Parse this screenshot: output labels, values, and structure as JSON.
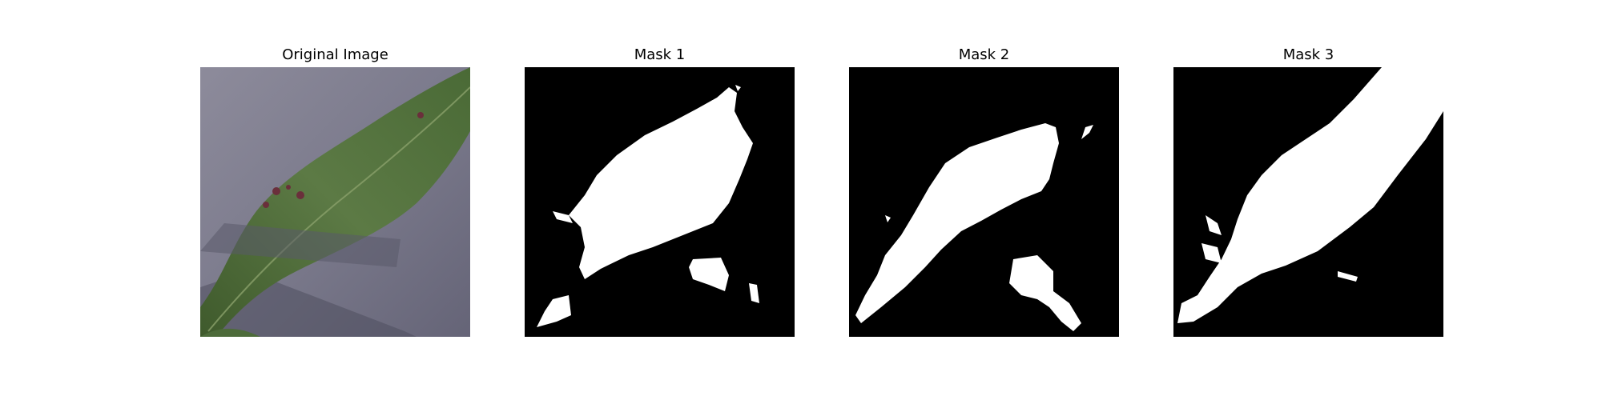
{
  "panels": [
    {
      "title": "Original Image",
      "kind": "photo"
    },
    {
      "title": "Mask 1",
      "kind": "mask"
    },
    {
      "title": "Mask 2",
      "kind": "mask"
    },
    {
      "title": "Mask 3",
      "kind": "mask"
    }
  ],
  "colors": {
    "background": "#ffffff",
    "mask_background": "#000000",
    "mask_foreground": "#ffffff",
    "leaf": "#4d6b3a",
    "surface": "#7b7b8c",
    "lesion": "#6a2f3b"
  }
}
